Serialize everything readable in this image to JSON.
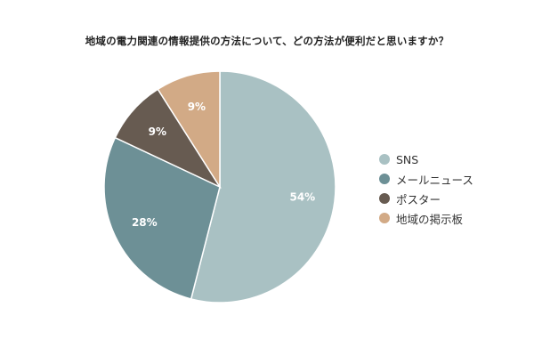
{
  "chart_data": {
    "type": "pie",
    "title": "地域の電力関連の情報提供の方法について、どの方法が便利だと思いますか？",
    "categories": [
      "SNS",
      "メールニュース",
      "ポスター",
      "地域の掲示板"
    ],
    "values": [
      54,
      28,
      9,
      9
    ],
    "labels": [
      "54%",
      "28%",
      "9%",
      "9%"
    ],
    "colors": [
      "#a9c1c3",
      "#6d9096",
      "#675b51",
      "#d2aa86"
    ],
    "legend_position": "right",
    "start_angle": "12 o'clock",
    "direction": "clockwise"
  }
}
